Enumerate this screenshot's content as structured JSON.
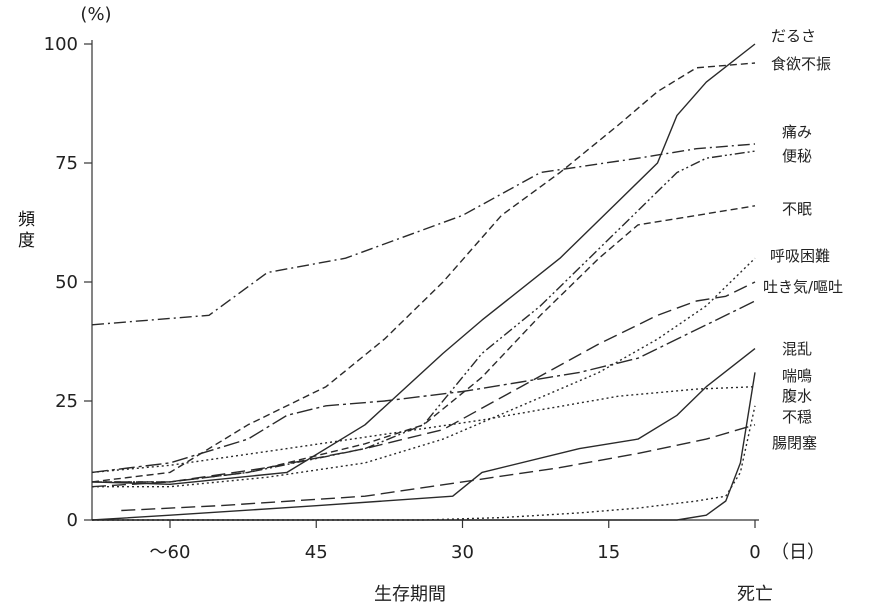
{
  "chart_data": {
    "type": "line",
    "ylabel": "頻度",
    "yunit": "(%)",
    "xlabel": "生存期間",
    "xend_label": "死亡",
    "xunit": "（日）",
    "xlim": [
      68,
      0
    ],
    "ylim": [
      0,
      100
    ],
    "xticks": [
      60,
      45,
      30,
      15,
      0
    ],
    "xtick_labels": [
      "〜60",
      "45",
      "30",
      "15",
      "0"
    ],
    "yticks": [
      0,
      25,
      50,
      75,
      100
    ],
    "ytick_labels": [
      "0",
      "25",
      "50",
      "75",
      "100"
    ],
    "series": [
      {
        "name": "だるさ",
        "style": "solid",
        "points": [
          [
            68,
            8
          ],
          [
            60,
            7.5
          ],
          [
            48,
            10
          ],
          [
            40,
            20
          ],
          [
            32,
            35
          ],
          [
            28,
            42
          ],
          [
            20,
            55
          ],
          [
            14,
            67
          ],
          [
            10,
            75
          ],
          [
            8,
            85
          ],
          [
            5,
            92
          ],
          [
            0,
            100
          ]
        ]
      },
      {
        "name": "食欲不振",
        "style": "dashed",
        "points": [
          [
            68,
            8
          ],
          [
            60,
            10
          ],
          [
            52,
            20
          ],
          [
            44,
            28
          ],
          [
            38,
            38
          ],
          [
            32,
            50
          ],
          [
            26,
            64
          ],
          [
            20,
            73
          ],
          [
            14,
            83
          ],
          [
            10,
            90
          ],
          [
            6,
            95
          ],
          [
            0,
            96
          ]
        ]
      },
      {
        "name": "痛み",
        "style": "dashdot",
        "points": [
          [
            68,
            41
          ],
          [
            56,
            43
          ],
          [
            50,
            52
          ],
          [
            42,
            55
          ],
          [
            30,
            64
          ],
          [
            22,
            73
          ],
          [
            12,
            76
          ],
          [
            6,
            78
          ],
          [
            0,
            79
          ]
        ]
      },
      {
        "name": "便秘",
        "style": "dashdotdot",
        "points": [
          [
            68,
            8
          ],
          [
            60,
            8
          ],
          [
            52,
            10
          ],
          [
            40,
            15
          ],
          [
            34,
            20
          ],
          [
            28,
            35
          ],
          [
            22,
            45
          ],
          [
            17,
            55
          ],
          [
            13,
            63
          ],
          [
            8,
            73
          ],
          [
            5,
            76
          ],
          [
            0,
            77.5
          ]
        ]
      },
      {
        "name": "不眠",
        "style": "dashed",
        "points": [
          [
            68,
            8
          ],
          [
            60,
            8
          ],
          [
            52,
            10
          ],
          [
            46,
            13
          ],
          [
            40,
            16
          ],
          [
            34,
            20
          ],
          [
            28,
            30
          ],
          [
            22,
            43
          ],
          [
            16,
            55
          ],
          [
            12,
            62
          ],
          [
            6,
            64
          ],
          [
            0,
            66
          ]
        ]
      },
      {
        "name": "呼吸困難",
        "style": "dotted",
        "points": [
          [
            68,
            7
          ],
          [
            60,
            7
          ],
          [
            50,
            9
          ],
          [
            40,
            12
          ],
          [
            32,
            17
          ],
          [
            24,
            24
          ],
          [
            16,
            31
          ],
          [
            10,
            38
          ],
          [
            5,
            45
          ],
          [
            0,
            55
          ]
        ]
      },
      {
        "name": "吐き気/嘔吐",
        "style": "longdash",
        "points": [
          [
            68,
            7
          ],
          [
            60,
            8
          ],
          [
            50,
            11
          ],
          [
            40,
            15
          ],
          [
            32,
            19
          ],
          [
            24,
            28
          ],
          [
            16,
            37
          ],
          [
            10,
            43
          ],
          [
            6,
            46
          ],
          [
            3,
            47
          ],
          [
            0,
            50
          ]
        ]
      },
      {
        "name": "混乱",
        "style": "solid",
        "points": [
          [
            68,
            0
          ],
          [
            60,
            1
          ],
          [
            45,
            3
          ],
          [
            31,
            5
          ],
          [
            28,
            10
          ],
          [
            18,
            15
          ],
          [
            12,
            17
          ],
          [
            8,
            22
          ],
          [
            5,
            28
          ],
          [
            0,
            36
          ]
        ]
      },
      {
        "name": "喘鳴",
        "style": "dotted",
        "points": [
          [
            68,
            10
          ],
          [
            60,
            11.5
          ],
          [
            48,
            15
          ],
          [
            38,
            18
          ],
          [
            28,
            21
          ],
          [
            14,
            26
          ],
          [
            6,
            27.5
          ],
          [
            0,
            28
          ]
        ]
      },
      {
        "name": "腹水",
        "style": "dashdotlong",
        "points": [
          [
            68,
            10
          ],
          [
            60,
            12
          ],
          [
            52,
            17
          ],
          [
            48,
            22
          ],
          [
            44,
            24
          ],
          [
            38,
            25
          ],
          [
            30,
            27
          ],
          [
            24,
            29
          ],
          [
            18,
            31
          ],
          [
            12,
            34
          ],
          [
            8,
            38
          ],
          [
            4,
            42
          ],
          [
            0,
            46
          ]
        ]
      },
      {
        "name": "不穏",
        "style": "dotted",
        "points": [
          [
            68,
            0
          ],
          [
            34,
            0
          ],
          [
            26,
            0.5
          ],
          [
            18,
            1.5
          ],
          [
            12,
            2.5
          ],
          [
            6,
            4
          ],
          [
            3,
            5
          ],
          [
            1.5,
            10
          ],
          [
            0,
            24
          ]
        ]
      },
      {
        "name": "腸閉塞",
        "style": "longdash",
        "points": [
          [
            65,
            2
          ],
          [
            55,
            3
          ],
          [
            40,
            5
          ],
          [
            30,
            8
          ],
          [
            20,
            11
          ],
          [
            12,
            14
          ],
          [
            5,
            17
          ],
          [
            0,
            20
          ]
        ]
      },
      {
        "name": "",
        "style": "solid",
        "points": [
          [
            68,
            0
          ],
          [
            8,
            0
          ],
          [
            5,
            1
          ],
          [
            3,
            4
          ],
          [
            1.5,
            12
          ],
          [
            0,
            31
          ]
        ]
      }
    ]
  }
}
